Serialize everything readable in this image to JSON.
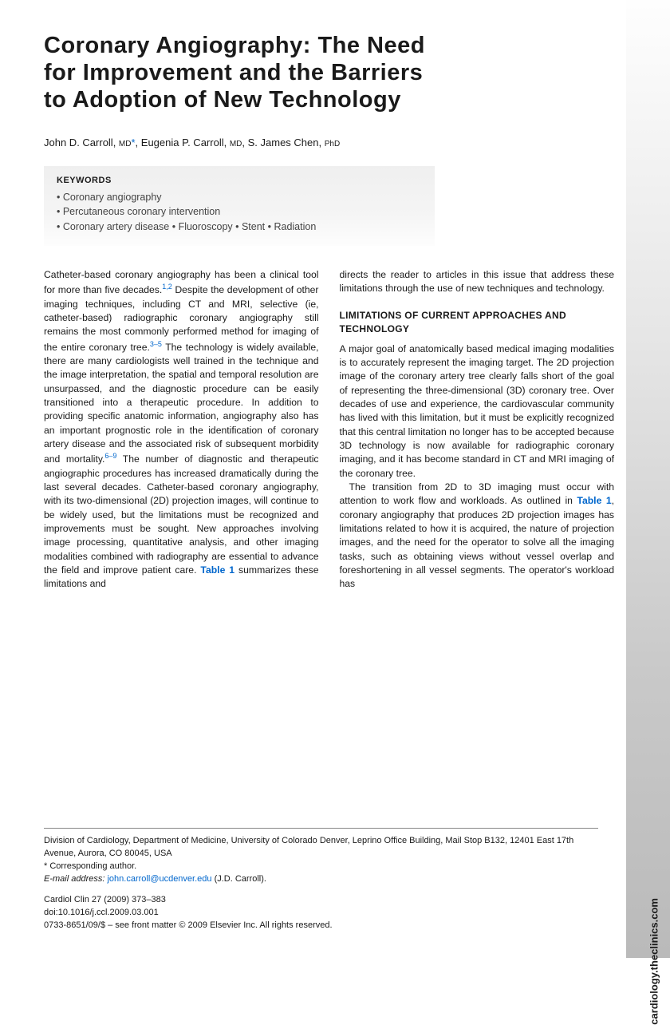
{
  "sidebar_url": "cardiology.theclinics.com",
  "title": "Coronary Angiography: The Need for Improvement and the Barriers to Adoption of New Technology",
  "authors_html": "John D. Carroll, <span class='deg'>MD</span><span class='ast'>*</span>, Eugenia P. Carroll, <span class='deg'>MD</span>, S. James Chen, <span class='deg'>PhD</span>",
  "keywords_label": "KEYWORDS",
  "keywords_lines": [
    "• Coronary angiography",
    "• Percutaneous coronary intervention",
    "• Coronary artery disease • Fluoroscopy • Stent • Radiation"
  ],
  "col1_p1": "Catheter-based coronary angiography has been a clinical tool for more than five decades.<span class='sup'>1,2</span> Despite the development of other imaging techniques, including CT and MRI, selective (ie, catheter-based) radiographic coronary angiography still remains the most commonly performed method for imaging of the entire coronary tree.<span class='sup'>3–5</span> The technology is widely available, there are many cardiologists well trained in the technique and the image interpretation, the spatial and temporal resolution are unsurpassed, and the diagnostic procedure can be easily transitioned into a therapeutic procedure. In addition to providing specific anatomic information, angiography also has an important prognostic role in the identification of coronary artery disease and the associated risk of subsequent morbidity and mortality.<span class='sup'>6–9</span> The number of diagnostic and therapeutic angiographic procedures has increased dramatically during the last several decades. Catheter-based coronary angiography, with its two-dimensional (2D) projection images, will continue to be widely used, but the limitations must be recognized and improvements must be sought. New approaches involving image processing, quantitative analysis, and other imaging modalities combined with radiography are essential to advance the field and improve patient care. <span class='link'>Table 1</span> summarizes these limitations and",
  "col2_p1": "directs the reader to articles in this issue that address these limitations through the use of new techniques and technology.",
  "section_heading": "LIMITATIONS OF CURRENT APPROACHES AND TECHNOLOGY",
  "col2_p2": "A major goal of anatomically based medical imaging modalities is to accurately represent the imaging target. The 2D projection image of the coronary artery tree clearly falls short of the goal of representing the three-dimensional (3D) coronary tree. Over decades of use and experience, the cardiovascular community has lived with this limitation, but it must be explicitly recognized that this central limitation no longer has to be accepted because 3D technology is now available for radiographic coronary imaging, and it has become standard in CT and MRI imaging of the coronary tree.",
  "col2_p3": "The transition from 2D to 3D imaging must occur with attention to work flow and workloads. As outlined in <span class='link'>Table 1</span>, coronary angiography that produces 2D projection images has limitations related to how it is acquired, the nature of projection images, and the need for the operator to solve all the imaging tasks, such as obtaining views without vessel overlap and foreshortening in all vessel segments. The operator's workload has",
  "footer": {
    "affiliation": "Division of Cardiology, Department of Medicine, University of Colorado Denver, Leprino Office Building, Mail Stop B132, 12401 East 17th Avenue, Aurora, CO 80045, USA",
    "corresponding": "* Corresponding author.",
    "email_label": "E-mail address:",
    "email": "john.carroll@ucdenver.edu",
    "email_suffix": "(J.D. Carroll).",
    "journal": "Cardiol Clin 27 (2009) 373–383",
    "doi": "doi:10.1016/j.ccl.2009.03.001",
    "copyright": "0733-8651/09/$ – see front matter © 2009 Elsevier Inc. All rights reserved."
  }
}
